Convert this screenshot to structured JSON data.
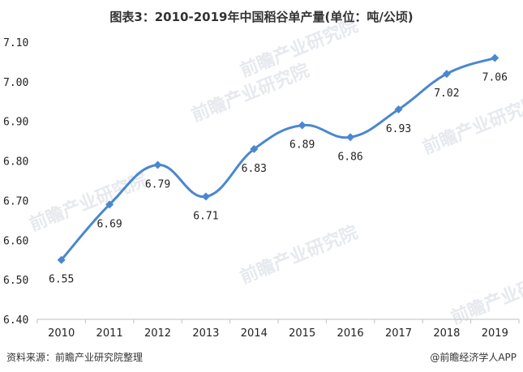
{
  "title": "图表3：2010-2019年中国稻谷单产量(单位：吨/公顷)",
  "footer": {
    "source": "资料来源：前瞻产业研究院整理",
    "brand": "@前瞻经济学人APP"
  },
  "watermark": "前瞻产业研究院",
  "colors": {
    "line": "#4a87d0",
    "marker": "#4a87d0",
    "axis": "#bfbfbf"
  },
  "chart_data": {
    "type": "line",
    "categories": [
      "2010",
      "2011",
      "2012",
      "2013",
      "2014",
      "2015",
      "2016",
      "2017",
      "2018",
      "2019"
    ],
    "series": [
      {
        "values": [
          6.55,
          6.69,
          6.79,
          6.71,
          6.83,
          6.89,
          6.86,
          6.93,
          7.02,
          7.06
        ]
      }
    ],
    "data_labels": [
      "6.55",
      "6.69",
      "6.79",
      "6.71",
      "6.83",
      "6.89",
      "6.86",
      "6.93",
      "7.02",
      "7.06"
    ],
    "y_ticks": [
      "6.40",
      "6.50",
      "6.60",
      "6.70",
      "6.80",
      "6.90",
      "7.00",
      "7.10"
    ],
    "ylim": [
      6.4,
      7.1
    ],
    "marker": "diamond",
    "smooth": true,
    "grid": false,
    "xlabel": "",
    "ylabel": ""
  }
}
